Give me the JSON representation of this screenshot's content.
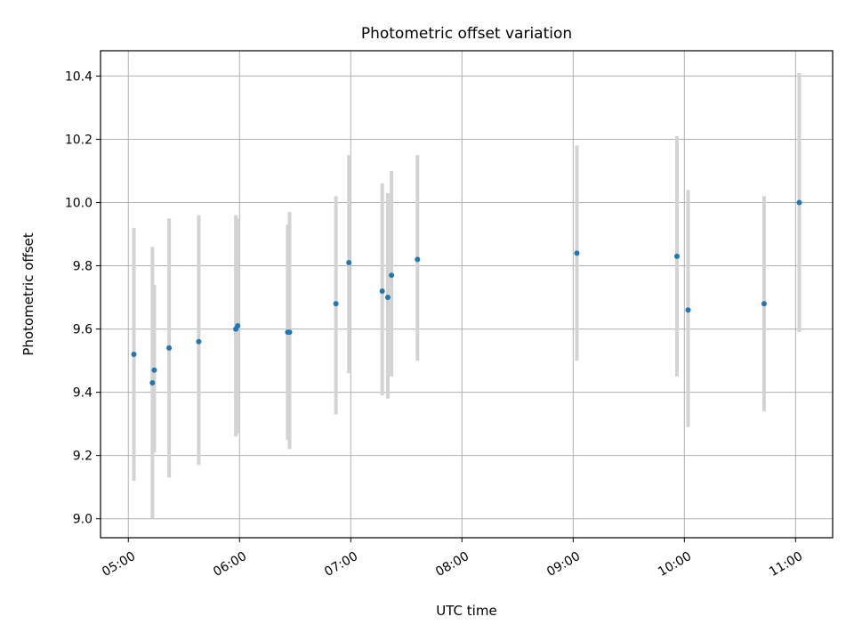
{
  "chart_data": {
    "type": "scatter",
    "title": "Photometric offset variation",
    "xlabel": "UTC time",
    "ylabel": "Photometric offset",
    "x_unit": "UTC time (HH:MM)",
    "xlim": [
      "04:45",
      "11:20"
    ],
    "ylim": [
      8.94,
      10.48
    ],
    "x_ticks": [
      "05:00",
      "06:00",
      "07:00",
      "08:00",
      "09:00",
      "10:00",
      "11:00"
    ],
    "y_ticks": [
      "9.0",
      "9.2",
      "9.4",
      "9.6",
      "9.8",
      "10.0",
      "10.2",
      "10.4"
    ],
    "grid": true,
    "colors": {
      "marker": "#1f77b4",
      "errorbar": "#d3d3d3",
      "grid": "#b0b0b0"
    },
    "series": [
      {
        "points": [
          {
            "x": "05:03",
            "y": 9.52,
            "ylow": 9.12,
            "yhigh": 9.92
          },
          {
            "x": "05:13",
            "y": 9.43,
            "ylow": 9.0,
            "yhigh": 9.86
          },
          {
            "x": "05:14",
            "y": 9.47,
            "ylow": 9.21,
            "yhigh": 9.74
          },
          {
            "x": "05:22",
            "y": 9.54,
            "ylow": 9.13,
            "yhigh": 9.95
          },
          {
            "x": "05:38",
            "y": 9.56,
            "ylow": 9.17,
            "yhigh": 9.96
          },
          {
            "x": "05:58",
            "y": 9.6,
            "ylow": 9.26,
            "yhigh": 9.96
          },
          {
            "x": "05:59",
            "y": 9.61,
            "ylow": 9.27,
            "yhigh": 9.95
          },
          {
            "x": "06:26",
            "y": 9.59,
            "ylow": 9.25,
            "yhigh": 9.93
          },
          {
            "x": "06:27",
            "y": 9.59,
            "ylow": 9.22,
            "yhigh": 9.97
          },
          {
            "x": "06:52",
            "y": 9.68,
            "ylow": 9.33,
            "yhigh": 10.02
          },
          {
            "x": "06:59",
            "y": 9.81,
            "ylow": 9.46,
            "yhigh": 10.15
          },
          {
            "x": "07:17",
            "y": 9.72,
            "ylow": 9.39,
            "yhigh": 10.06
          },
          {
            "x": "07:20",
            "y": 9.7,
            "ylow": 9.38,
            "yhigh": 10.03
          },
          {
            "x": "07:22",
            "y": 9.77,
            "ylow": 9.45,
            "yhigh": 10.1
          },
          {
            "x": "07:36",
            "y": 9.82,
            "ylow": 9.5,
            "yhigh": 10.15
          },
          {
            "x": "09:02",
            "y": 9.84,
            "ylow": 9.5,
            "yhigh": 10.18
          },
          {
            "x": "09:56",
            "y": 9.83,
            "ylow": 9.45,
            "yhigh": 10.21
          },
          {
            "x": "10:02",
            "y": 9.66,
            "ylow": 9.29,
            "yhigh": 10.04
          },
          {
            "x": "10:43",
            "y": 9.68,
            "ylow": 9.34,
            "yhigh": 10.02
          },
          {
            "x": "11:02",
            "y": 10.0,
            "ylow": 9.59,
            "yhigh": 10.41
          }
        ]
      }
    ]
  }
}
